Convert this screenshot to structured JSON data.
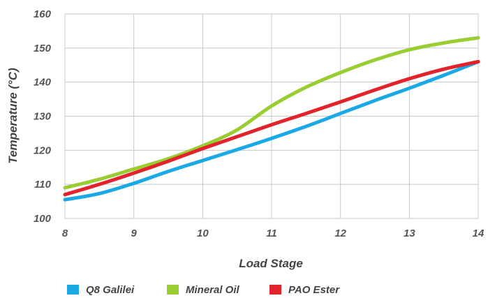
{
  "chart_data": {
    "type": "line",
    "title": "",
    "xlabel": "Load Stage",
    "ylabel": "Temperature (°C)",
    "xlim": [
      8,
      14
    ],
    "ylim": [
      100,
      160
    ],
    "x_ticks": [
      "8",
      "9",
      "10",
      "11",
      "12",
      "13",
      "14"
    ],
    "y_ticks": [
      "100",
      "110",
      "120",
      "130",
      "140",
      "150",
      "160"
    ],
    "grid": true,
    "legend_position": "bottom",
    "series": [
      {
        "name": "Q8 Galilei",
        "color": "#1aa9e5",
        "x": [
          8,
          8.5,
          9,
          9.5,
          10,
          10.5,
          11,
          11.5,
          12,
          12.5,
          13,
          13.5,
          14
        ],
        "y": [
          105.5,
          107.3,
          110.3,
          113.8,
          117.0,
          120.2,
          123.5,
          127.0,
          130.8,
          134.6,
          138.2,
          142.0,
          146.0
        ]
      },
      {
        "name": "Mineral Oil",
        "color": "#9acd32",
        "x": [
          8,
          8.5,
          9,
          9.5,
          10,
          10.5,
          11,
          11.5,
          12,
          12.5,
          13,
          13.5,
          14
        ],
        "y": [
          109.0,
          111.5,
          114.5,
          117.5,
          121.3,
          126.0,
          133.0,
          138.5,
          142.8,
          146.5,
          149.5,
          151.5,
          153.0
        ]
      },
      {
        "name": "PAO Ester",
        "color": "#e3232c",
        "x": [
          8,
          8.5,
          9,
          9.5,
          10,
          10.5,
          11,
          11.5,
          12,
          12.5,
          13,
          13.5,
          14
        ],
        "y": [
          107.0,
          110.0,
          113.3,
          116.8,
          120.5,
          124.0,
          127.5,
          130.8,
          134.2,
          137.7,
          141.0,
          143.8,
          146.0
        ]
      }
    ]
  }
}
